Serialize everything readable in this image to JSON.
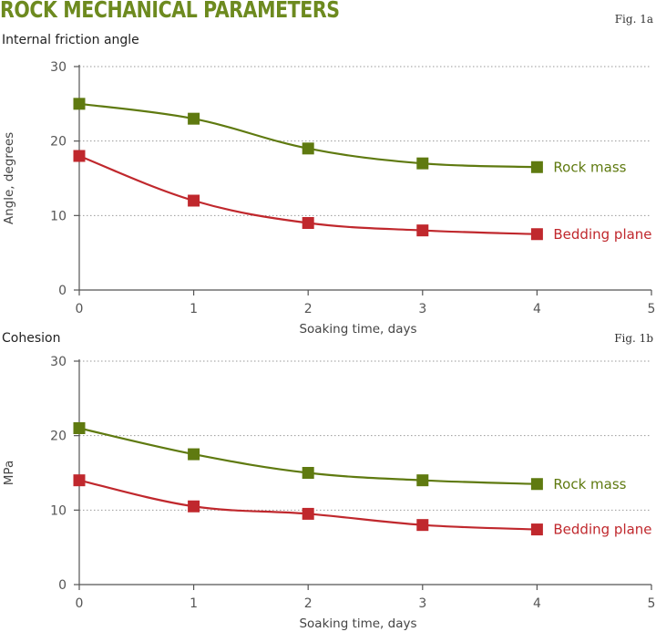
{
  "header": {
    "title": "ROCK MECHANICAL PARAMETERS"
  },
  "chart_data": [
    {
      "type": "line",
      "fig_label": "Fig. 1a",
      "title": "Internal friction angle",
      "xlabel": "Soaking time, days",
      "ylabel": "Angle, degrees",
      "xlim": [
        0,
        5
      ],
      "ylim": [
        0,
        30
      ],
      "x_ticks": [
        0,
        1,
        2,
        3,
        4,
        5
      ],
      "y_ticks": [
        0,
        10,
        20,
        30
      ],
      "grid": "horizontal dotted",
      "series": [
        {
          "name": "Rock mass",
          "color": "#5f7a10",
          "marker": "square",
          "x": [
            0,
            1,
            2,
            3,
            4
          ],
          "y": [
            25,
            23,
            19,
            17,
            16.5
          ]
        },
        {
          "name": "Bedding plane",
          "color": "#c0282d",
          "marker": "square",
          "x": [
            0,
            1,
            2,
            3,
            4
          ],
          "y": [
            18,
            12,
            9,
            8,
            7.5
          ]
        }
      ]
    },
    {
      "type": "line",
      "fig_label": "Fig. 1b",
      "title": "Cohesion",
      "xlabel": "Soaking time, days",
      "ylabel": "MPa",
      "xlim": [
        0,
        5
      ],
      "ylim": [
        0,
        30
      ],
      "x_ticks": [
        0,
        1,
        2,
        3,
        4,
        5
      ],
      "y_ticks": [
        0,
        10,
        20,
        30
      ],
      "grid": "horizontal dotted",
      "series": [
        {
          "name": "Rock mass",
          "color": "#5f7a10",
          "marker": "square",
          "x": [
            0,
            1,
            2,
            3,
            4
          ],
          "y": [
            21,
            17.5,
            15,
            14,
            13.5
          ]
        },
        {
          "name": "Bedding plane",
          "color": "#c0282d",
          "marker": "square",
          "x": [
            0,
            1,
            2,
            3,
            4
          ],
          "y": [
            14,
            10.5,
            9.5,
            8,
            7.4
          ]
        }
      ]
    }
  ]
}
